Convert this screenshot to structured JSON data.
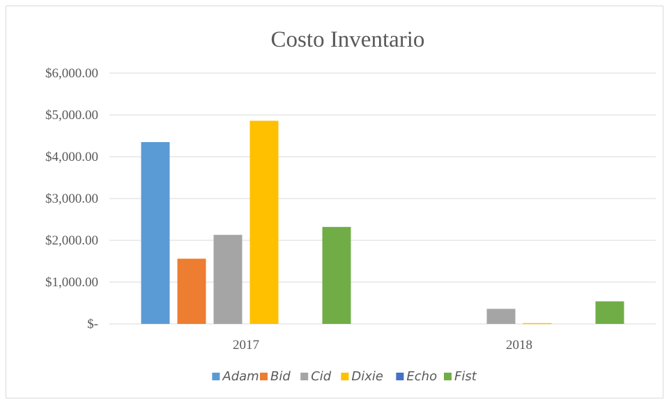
{
  "chart_data": {
    "type": "bar",
    "title": "Costo Inventario",
    "xlabel": "",
    "ylabel": "",
    "categories": [
      "2017",
      "2018"
    ],
    "ylim": [
      0,
      6000
    ],
    "yticks": [
      0,
      1000,
      2000,
      3000,
      4000,
      5000,
      6000
    ],
    "ytick_labels": [
      "$-",
      "$1,000.00",
      "$2,000.00",
      "$3,000.00",
      "$4,000.00",
      "$5,000.00",
      "$6,000.00"
    ],
    "grid": true,
    "legend_position": "bottom",
    "series": [
      {
        "name": "Adam",
        "color": "#5b9bd5",
        "values": [
          4350,
          0
        ]
      },
      {
        "name": "Bid",
        "color": "#ed7d31",
        "values": [
          1560,
          0
        ]
      },
      {
        "name": "Cid",
        "color": "#a5a5a5",
        "values": [
          2130,
          360
        ]
      },
      {
        "name": "Dixie",
        "color": "#ffc000",
        "values": [
          4860,
          20
        ]
      },
      {
        "name": "Echo",
        "color": "#4472c4",
        "values": [
          0,
          0
        ]
      },
      {
        "name": "Fist",
        "color": "#70ad47",
        "values": [
          2320,
          540
        ]
      }
    ]
  }
}
